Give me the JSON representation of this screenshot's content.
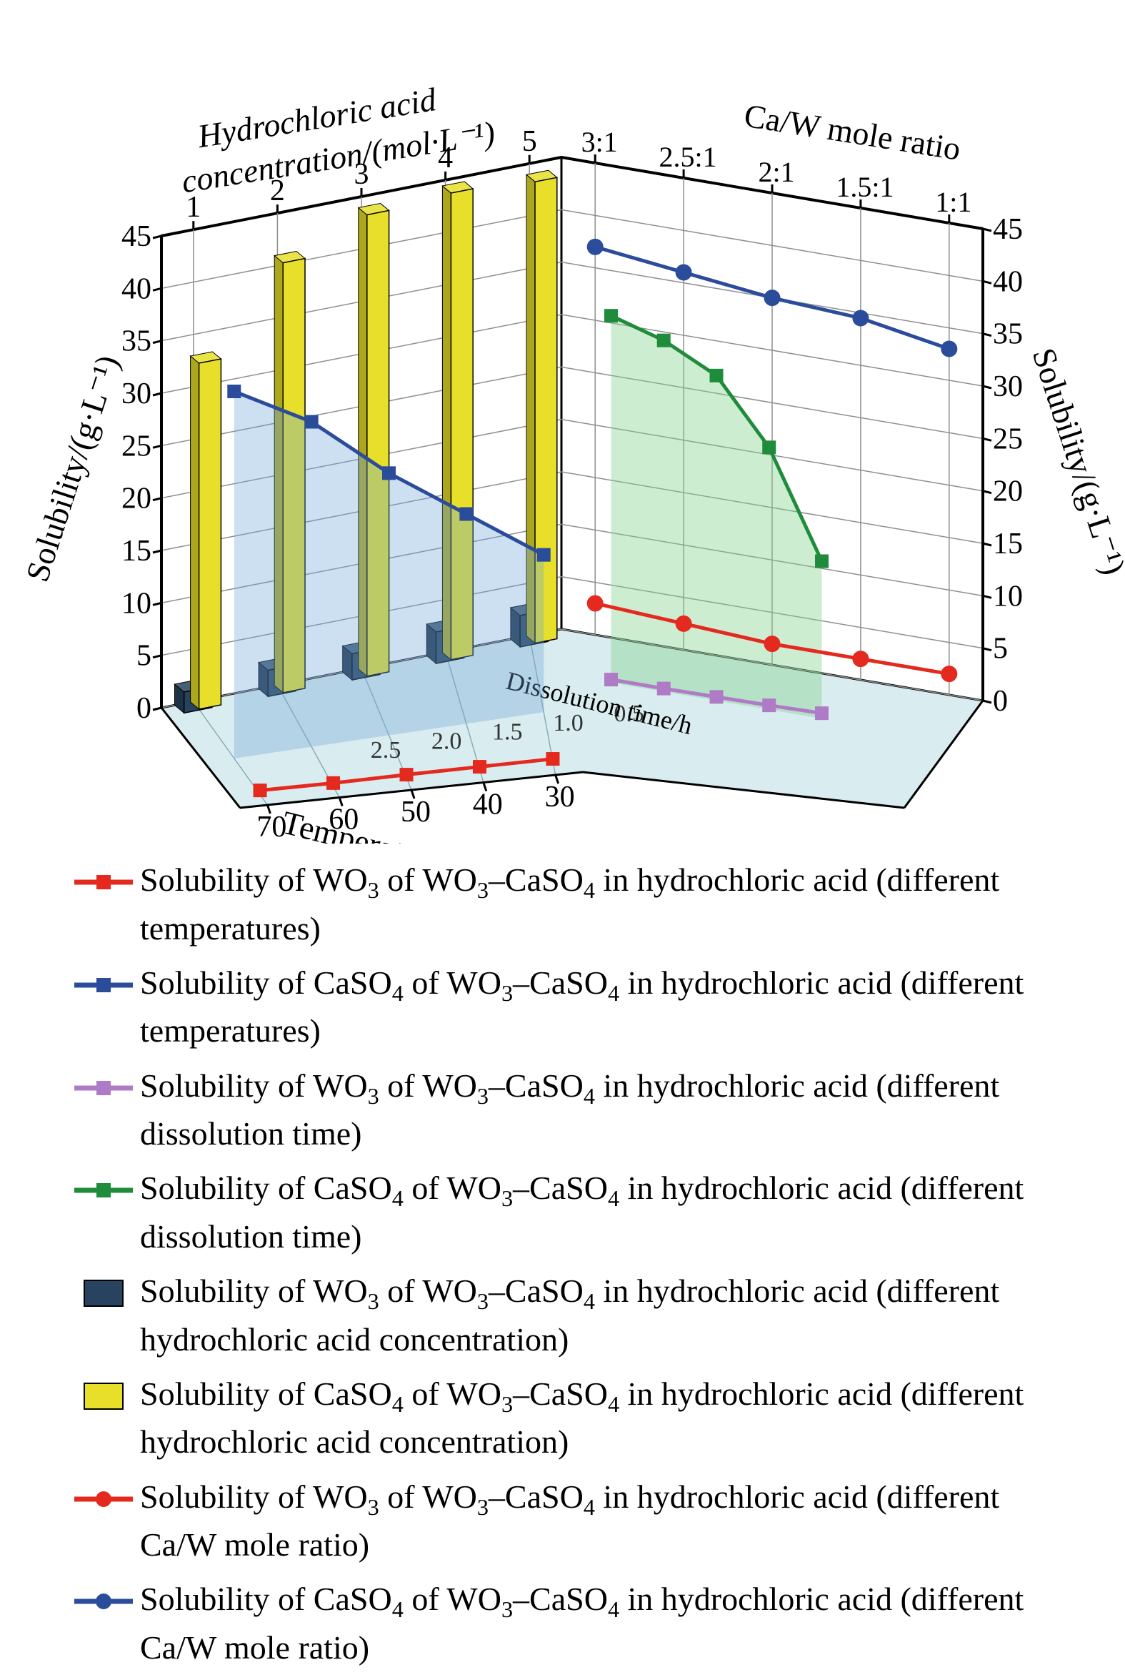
{
  "chart": {
    "type": "3d-composite-bar-line",
    "background_color": "#ffffff",
    "floor_color": "#d9ecef",
    "wall_color": "#ffffff",
    "grid_color": "#8f8f8f",
    "axis_line_color": "#000000",
    "y_axis_left": {
      "label": "Solubility/(g·L⁻¹)",
      "min": 0,
      "max": 45,
      "ticks": [
        0,
        5,
        10,
        15,
        20,
        25,
        30,
        35,
        40,
        45
      ],
      "label_fontsize": 46,
      "tick_fontsize": 42
    },
    "y_axis_right": {
      "label": "Solubility/(g·L⁻¹)",
      "min": 0,
      "max": 45,
      "ticks": [
        0,
        5,
        10,
        15,
        20,
        25,
        30,
        35,
        40,
        45
      ],
      "label_fontsize": 46,
      "tick_fontsize": 42
    },
    "x_axis_temperature": {
      "label": "Temperature/℃",
      "ticks": [
        70,
        60,
        50,
        40,
        30
      ],
      "label_fontsize": 46,
      "tick_fontsize": 42
    },
    "x_axis_dissolution": {
      "label": "Dissolution time/h",
      "ticks": [
        2.5,
        2.0,
        1.5,
        1.0,
        0.5
      ],
      "label_fontsize": 38,
      "tick_fontsize": 36
    },
    "top_axis_hcl": {
      "label": "Hydrochloric acid concentration/(mol·L⁻¹)",
      "ticks": [
        1,
        2,
        3,
        4,
        5
      ],
      "label_fontsize": 46,
      "tick_fontsize": 42
    },
    "top_axis_caw": {
      "label": "Ca/W mole ratio",
      "ticks": [
        "3:1",
        "2.5:1",
        "2:1",
        "1.5:1",
        "1:1"
      ],
      "label_fontsize": 46,
      "tick_fontsize": 42
    },
    "series": {
      "wo3_temperature": {
        "style": "line-square",
        "color": "#e4291f",
        "marker": "square",
        "x": [
          70,
          60,
          50,
          40,
          30
        ],
        "y": [
          0.4,
          0.3,
          0.3,
          0.25,
          0.2
        ]
      },
      "caso4_temperature": {
        "style": "line-square-area",
        "color": "#2b4b9b",
        "area_color": "#6fa7d9",
        "area_opacity": 0.35,
        "marker": "square",
        "x": [
          70,
          60,
          50,
          40,
          30
        ],
        "y": [
          35,
          31,
          25,
          20,
          15
        ]
      },
      "wo3_dissolution": {
        "style": "line-square",
        "color": "#b07bc6",
        "marker": "square",
        "x": [
          2.5,
          2.0,
          1.5,
          1.0,
          0.5
        ],
        "y": [
          0.3,
          0.3,
          0.35,
          0.4,
          0.5
        ]
      },
      "caso4_dissolution": {
        "style": "line-square-area",
        "color": "#1e8c3a",
        "area_color": "#7fd18a",
        "area_opacity": 0.4,
        "marker": "square",
        "x": [
          2.5,
          2.0,
          1.5,
          1.0,
          0.5
        ],
        "y": [
          35,
          33.5,
          31,
          25,
          15
        ]
      },
      "wo3_hcl": {
        "style": "bar3d",
        "color": "#27435f",
        "x": [
          1,
          2,
          3,
          4,
          5
        ],
        "y": [
          2,
          2.5,
          2.5,
          3,
          3
        ]
      },
      "caso4_hcl": {
        "style": "bar3d",
        "color": "#e7df29",
        "x": [
          1,
          2,
          3,
          4,
          5
        ],
        "y": [
          33,
          41,
          44,
          44.5,
          44
        ]
      },
      "wo3_caw": {
        "style": "line-circle",
        "color": "#e4291f",
        "marker": "circle",
        "x": [
          "3:1",
          "2.5:1",
          "2:1",
          "1.5:1",
          "1:1"
        ],
        "y": [
          3,
          2.5,
          2,
          2,
          2
        ]
      },
      "caso4_caw": {
        "style": "line-circle",
        "color": "#2b4b9b",
        "marker": "circle",
        "x": [
          "3:1",
          "2.5:1",
          "2:1",
          "1.5:1",
          "1:1"
        ],
        "y": [
          37,
          36,
          35,
          34.5,
          33
        ]
      }
    }
  },
  "legend": {
    "fontsize": 46,
    "entries": [
      {
        "marker": "line-square",
        "color": "#e4291f",
        "text_parts": [
          "Solubility of WO",
          "3",
          " of WO",
          "3",
          "–CaSO",
          "4",
          " in hydrochloric acid (different temperatures)"
        ]
      },
      {
        "marker": "line-square",
        "color": "#2b4b9b",
        "text_parts": [
          "Solubility of CaSO",
          "4",
          " of WO",
          "3",
          "–CaSO",
          "4",
          " in hydrochloric acid (different temperatures)"
        ]
      },
      {
        "marker": "line-square",
        "color": "#b07bc6",
        "text_parts": [
          "Solubility of WO",
          "3",
          " of WO",
          "3",
          "–CaSO",
          "4",
          " in hydrochloric acid (different dissolution time)"
        ]
      },
      {
        "marker": "line-square",
        "color": "#1e8c3a",
        "text_parts": [
          "Solubility of CaSO",
          "4",
          " of WO",
          "3",
          "–CaSO",
          "4",
          " in hydrochloric acid (different dissolution time)"
        ]
      },
      {
        "marker": "swatch",
        "color": "#27435f",
        "text_parts": [
          "Solubility of WO",
          "3",
          " of WO",
          "3",
          "–CaSO",
          "4",
          " in hydrochloric acid (different hydrochloric acid concentration)"
        ]
      },
      {
        "marker": "swatch",
        "color": "#e7df29",
        "text_parts": [
          "Solubility of CaSO",
          "4",
          " of WO",
          "3",
          "–CaSO",
          "4",
          " in hydrochloric acid (different hydrochloric acid concentration)"
        ]
      },
      {
        "marker": "line-circle",
        "color": "#e4291f",
        "text_parts": [
          "Solubility of WO",
          "3",
          " of WO",
          "3",
          "–CaSO",
          "4",
          " in hydrochloric acid (different Ca/W mole ratio)"
        ]
      },
      {
        "marker": "line-circle",
        "color": "#2b4b9b",
        "text_parts": [
          "Solubility of CaSO",
          "4",
          " of WO",
          "3",
          "–CaSO",
          "4",
          " in hydrochloric acid (different Ca/W mole ratio)"
        ]
      }
    ]
  }
}
